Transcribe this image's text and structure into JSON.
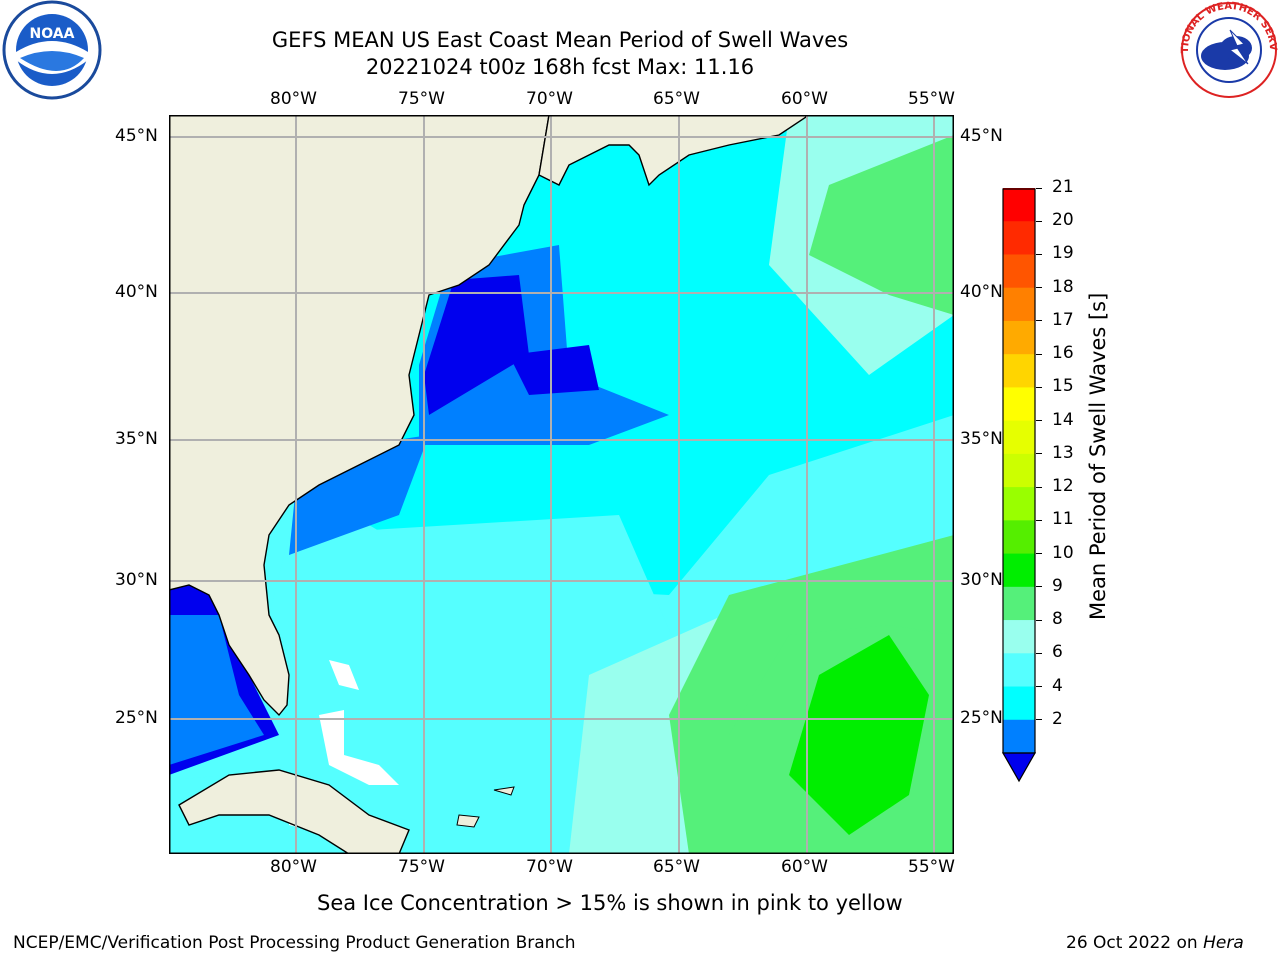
{
  "header": {
    "title_line1": "GEFS MEAN US East Coast Mean Period of Swell Waves",
    "title_line2": "20221024 t00z 168h fcst   Max: 11.16"
  },
  "logos": {
    "left": {
      "name": "NOAA",
      "icon": "noaa-logo"
    },
    "right": {
      "name": "NATIONAL WEATHER SERVICE",
      "icon": "nws-logo"
    }
  },
  "map": {
    "lon_labels": [
      "80°W",
      "75°W",
      "70°W",
      "65°W",
      "60°W",
      "55°W"
    ],
    "lat_labels": [
      "45°N",
      "40°N",
      "35°N",
      "30°N",
      "25°N"
    ],
    "land_color": "#efefdd",
    "coast_color": "#000000",
    "grid_color": "#b0b0b0"
  },
  "colorbar": {
    "label": "Mean Period of Swell Waves [s]",
    "ticks": [
      "21",
      "20",
      "19",
      "18",
      "17",
      "16",
      "15",
      "14",
      "13",
      "12",
      "11",
      "10",
      "9",
      "8",
      "6",
      "4",
      "2"
    ],
    "colors": [
      "#ff0000",
      "#ff2a00",
      "#ff5500",
      "#ff8000",
      "#ffaa00",
      "#ffd500",
      "#ffff00",
      "#e6ff00",
      "#ccff00",
      "#99ff00",
      "#55ee00",
      "#00ee00",
      "#55f07a",
      "#99ffee",
      "#55ffff",
      "#00ffff",
      "#0080ff"
    ],
    "under_color": "#0000ee"
  },
  "footer": {
    "subtitle": "Sea Ice Concentration > 15% is shown in pink to yellow",
    "left": "NCEP/EMC/Verification Post Processing Product Generation Branch",
    "right_prefix": "26 Oct 2022 on ",
    "right_host": "Hera"
  }
}
